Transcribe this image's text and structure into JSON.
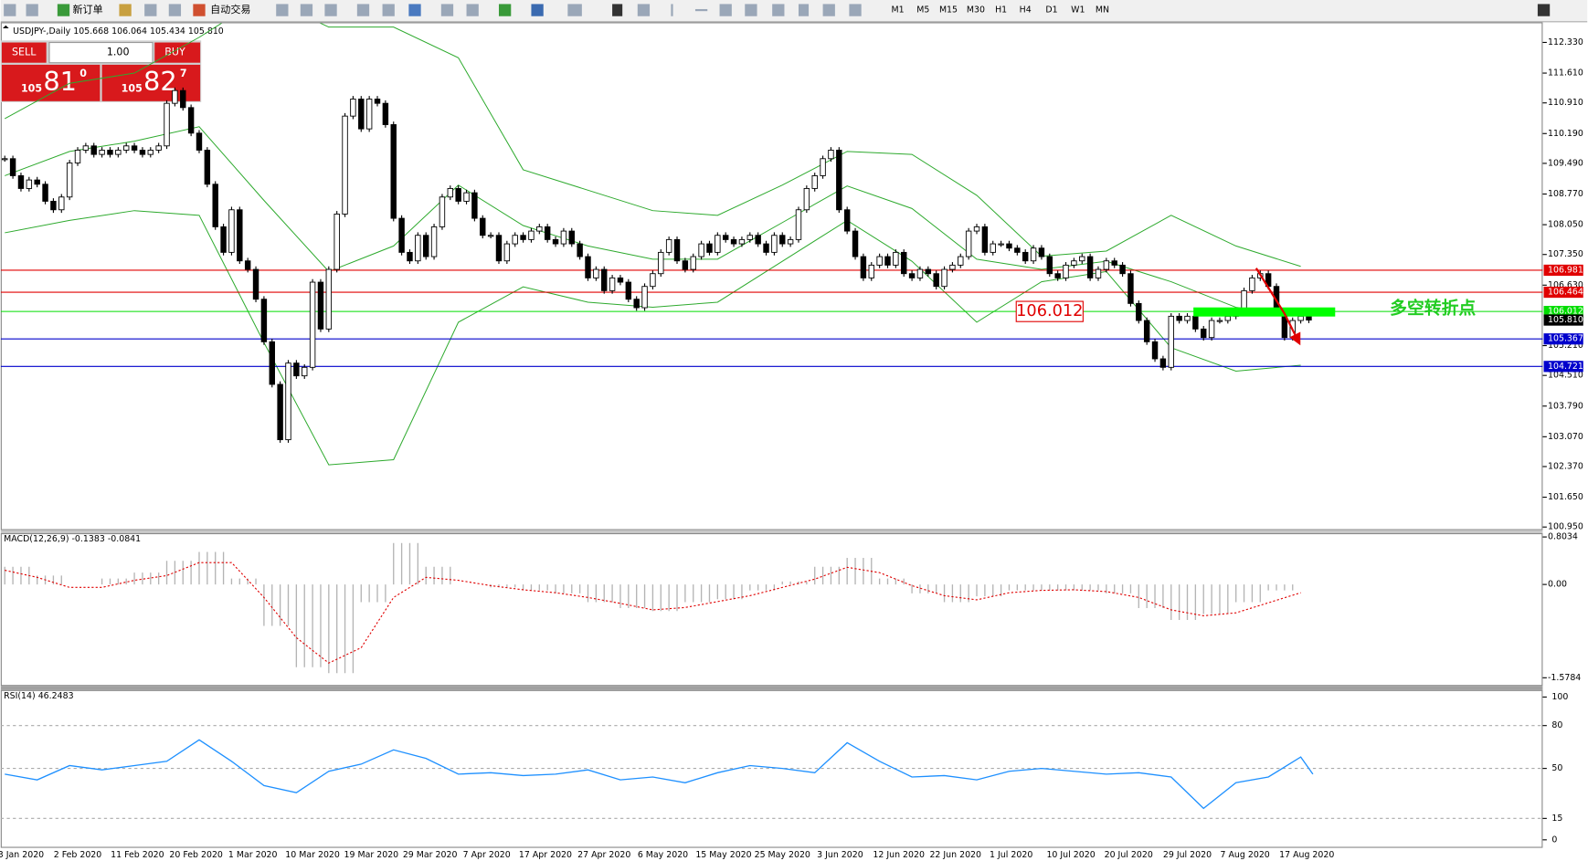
{
  "toolbar": {
    "new_order": "新订单",
    "auto_trading": "自动交易",
    "timeframes": [
      "M1",
      "M5",
      "M15",
      "M30",
      "H1",
      "H4",
      "D1",
      "W1",
      "MN"
    ]
  },
  "trade_panel": {
    "sell": "SELL",
    "buy": "BUY",
    "lots": "1.00",
    "sell_price": {
      "big": "105",
      "main": "81",
      "small": "0"
    },
    "buy_price": {
      "big": "105",
      "main": "82",
      "small": "7"
    }
  },
  "chart_data": [
    {
      "type": "candlestick",
      "title": "USDJPY-,Daily 105.668 106.064 105.434 105.810",
      "close": [
        109.6,
        109.2,
        108.9,
        109.1,
        109.0,
        108.6,
        108.4,
        108.7,
        109.5,
        109.8,
        109.9,
        109.7,
        109.8,
        109.7,
        109.8,
        109.9,
        109.8,
        109.7,
        109.8,
        109.9,
        110.9,
        111.2,
        110.8,
        110.2,
        109.8,
        109.0,
        108.0,
        107.4,
        108.4,
        107.2,
        107.0,
        106.3,
        105.3,
        104.3,
        103.0,
        104.8,
        104.5,
        104.7,
        106.7,
        105.6,
        107.0,
        108.3,
        110.6,
        111.0,
        110.3,
        111.0,
        110.9,
        110.4,
        108.2,
        107.4,
        107.2,
        107.8,
        107.3,
        108.0,
        108.7,
        108.9,
        108.6,
        108.8,
        108.2,
        107.8,
        107.8,
        107.2,
        107.6,
        107.8,
        107.7,
        107.9,
        108.0,
        107.7,
        107.6,
        107.9,
        107.6,
        107.3,
        106.8,
        107.0,
        106.5,
        106.8,
        106.7,
        106.3,
        106.1,
        106.6,
        106.9,
        107.4,
        107.7,
        107.2,
        107.0,
        107.3,
        107.6,
        107.4,
        107.8,
        107.7,
        107.6,
        107.7,
        107.8,
        107.6,
        107.4,
        107.8,
        107.6,
        107.7,
        108.4,
        108.9,
        109.2,
        109.6,
        109.8,
        108.4,
        107.9,
        107.3,
        106.8,
        107.1,
        107.3,
        107.1,
        107.4,
        106.9,
        106.8,
        107.0,
        106.9,
        106.6,
        107.0,
        107.1,
        107.3,
        107.9,
        108.0,
        107.4,
        107.6,
        107.6,
        107.5,
        107.4,
        107.2,
        107.5,
        107.3,
        106.9,
        106.8,
        107.1,
        107.2,
        107.3,
        106.8,
        107.0,
        107.2,
        107.1,
        106.9,
        106.2,
        105.8,
        105.3,
        104.9,
        104.7,
        105.9,
        105.8,
        105.9,
        105.6,
        105.4,
        105.8,
        105.8,
        105.9,
        106.0,
        106.5,
        106.8,
        106.9,
        106.6,
        106.0,
        105.4,
        105.8,
        105.9,
        105.81
      ],
      "bands": {
        "color": "#2eaa2e",
        "upper": [
          110.54,
          111.37,
          111.61,
          112.45,
          113.41,
          112.69,
          112.69,
          111.97,
          109.34,
          108.86,
          108.38,
          108.27,
          108.98,
          109.77,
          109.7,
          108.74,
          107.31,
          107.43,
          108.27,
          107.55,
          107.07
        ],
        "middle": [
          109.2,
          109.77,
          110.01,
          110.35,
          108.62,
          106.95,
          107.55,
          108.98,
          108.03,
          107.55,
          107.24,
          107.24,
          108.1,
          108.96,
          108.43,
          107.24,
          107.0,
          107.19,
          106.71,
          106.11,
          105.9
        ],
        "lower": [
          107.86,
          108.15,
          108.38,
          108.27,
          105.28,
          102.41,
          102.53,
          105.76,
          106.59,
          106.23,
          106.11,
          106.23,
          107.19,
          108.15,
          107.19,
          105.76,
          106.71,
          106.95,
          105.16,
          104.61,
          104.75
        ]
      },
      "ylim": [
        100.9,
        112.78
      ],
      "yticks": [
        {
          "value": 112.33,
          "label": "112.330"
        },
        {
          "value": 111.61,
          "label": "111.610"
        },
        {
          "value": 110.91,
          "label": "110.910"
        },
        {
          "value": 110.19,
          "label": "110.190"
        },
        {
          "value": 109.49,
          "label": "109.490"
        },
        {
          "value": 108.77,
          "label": "108.770"
        },
        {
          "value": 108.05,
          "label": "108.050"
        },
        {
          "value": 107.35,
          "label": "107.350"
        },
        {
          "value": 106.63,
          "label": "106.630"
        },
        {
          "value": 105.21,
          "label": "105.210"
        },
        {
          "value": 104.51,
          "label": "104.510"
        },
        {
          "value": 103.79,
          "label": "103.790"
        },
        {
          "value": 103.07,
          "label": "103.070"
        },
        {
          "value": 102.37,
          "label": "102.370"
        },
        {
          "value": 101.65,
          "label": "101.650"
        },
        {
          "value": 100.95,
          "label": "100.950"
        }
      ],
      "hlines": [
        {
          "value": 106.981,
          "color": "#e00000"
        },
        {
          "value": 106.464,
          "color": "#e00000"
        },
        {
          "value": 106.012,
          "color": "#00dd00"
        },
        {
          "value": 105.367,
          "color": "#0000cc"
        },
        {
          "value": 104.721,
          "color": "#0000cc"
        }
      ],
      "current_price": {
        "value": 105.81,
        "label": "105.810"
      },
      "annotation": "多空转折点",
      "x_labels": [
        "3 Jan 2020",
        "2 Feb 2020",
        "11 Feb 2020",
        "20 Feb 2020",
        "1 Mar 2020",
        "10 Mar 2020",
        "19 Mar 2020",
        "29 Mar 2020",
        "7 Apr 2020",
        "17 Apr 2020",
        "27 Apr 2020",
        "6 May 2020",
        "15 May 2020",
        "25 May 2020",
        "3 Jun 2020",
        "12 Jun 2020",
        "22 Jun 2020",
        "1 Jul 2020",
        "10 Jul 2020",
        "20 Jul 2020",
        "29 Jul 2020",
        "7 Aug 2020",
        "17 Aug 2020"
      ]
    },
    {
      "type": "macd",
      "title": "MACD(12,26,9) -0.1383 -0.0841",
      "histogram": [
        0.3,
        0.15,
        0.0,
        0.1,
        0.2,
        0.4,
        0.55,
        0.1,
        -0.7,
        -1.4,
        -1.5,
        -0.3,
        0.7,
        0.3,
        0.0,
        -0.05,
        -0.1,
        -0.15,
        -0.3,
        -0.4,
        -0.45,
        -0.3,
        -0.25,
        -0.1,
        0.05,
        0.3,
        0.45,
        0.1,
        -0.15,
        -0.3,
        -0.2,
        -0.1,
        -0.1,
        -0.1,
        -0.15,
        -0.4,
        -0.6,
        -0.5,
        -0.3,
        -0.1,
        0.0
      ],
      "signal": [
        0.24,
        0.12,
        -0.05,
        -0.05,
        0.07,
        0.15,
        0.37,
        0.37,
        -0.22,
        -0.9,
        -1.33,
        -1.07,
        -0.22,
        0.12,
        0.07,
        -0.02,
        -0.09,
        -0.14,
        -0.22,
        -0.32,
        -0.43,
        -0.39,
        -0.29,
        -0.19,
        -0.05,
        0.09,
        0.29,
        0.2,
        -0.02,
        -0.19,
        -0.26,
        -0.14,
        -0.1,
        -0.09,
        -0.12,
        -0.22,
        -0.43,
        -0.53,
        -0.48,
        -0.31,
        -0.14
      ],
      "histogram_color": "#b4b4b4",
      "signal_color": "#e00000",
      "ylim": [
        -1.7,
        0.85
      ],
      "yticks": [
        0.8034,
        {
          "value": 0,
          "label": "0.00"
        },
        -1.5784
      ]
    },
    {
      "type": "line",
      "title": "RSI(14) 46.2483",
      "values": [
        46,
        42,
        52,
        49,
        52,
        55,
        70,
        55,
        38,
        33,
        48,
        53,
        63,
        57,
        46,
        47,
        45,
        46,
        49,
        42,
        44,
        40,
        47,
        52,
        50,
        47,
        68,
        55,
        44,
        45,
        42,
        48,
        50,
        48,
        46,
        47,
        44,
        22,
        40,
        44,
        58,
        46
      ],
      "color": "#1e90ff",
      "ylim": [
        -4.9,
        104.2
      ],
      "yticks": [
        100,
        80,
        50,
        15,
        0
      ]
    }
  ]
}
